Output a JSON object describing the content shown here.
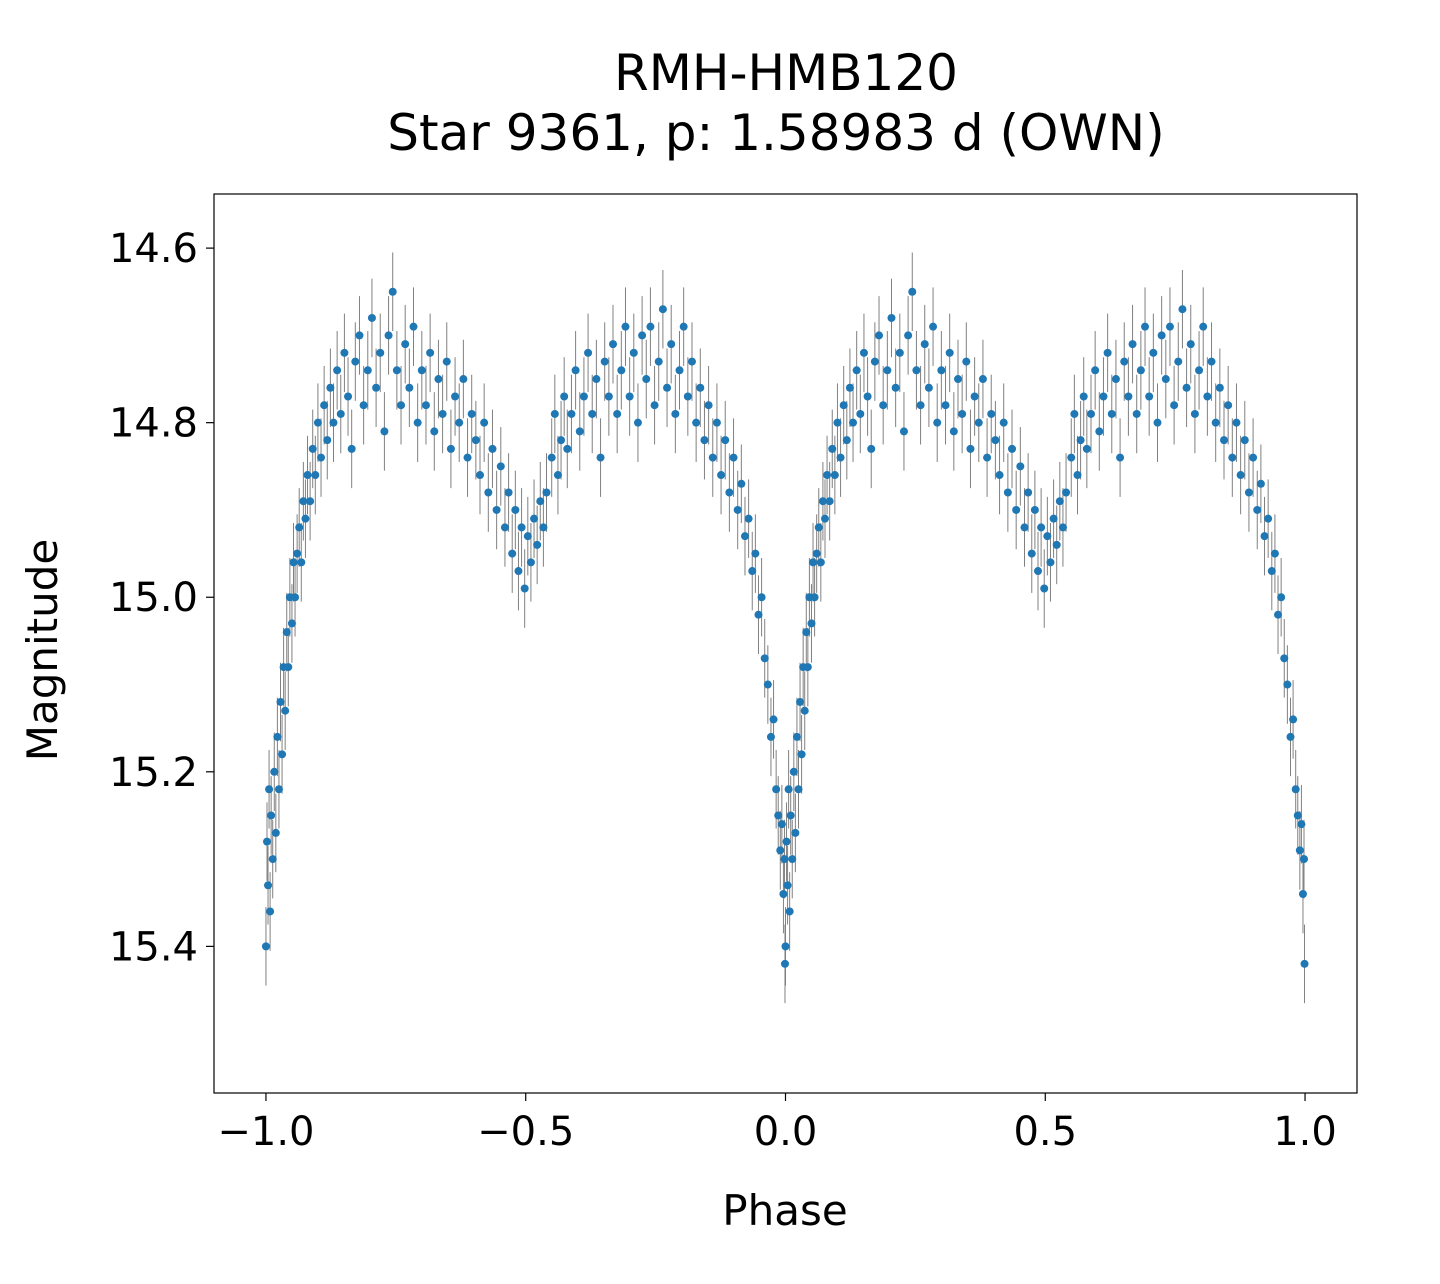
{
  "chart_data": {
    "type": "scatter",
    "title": "RMH-HMB120",
    "subtitle": "Star 9361, p: 1.58983 d (OWN)",
    "xlabel": "Phase",
    "ylabel": "Magnitude",
    "xlim": [
      -1.1,
      1.1
    ],
    "ylim": [
      15.568,
      14.538
    ],
    "y_inverted": true,
    "grid": false,
    "xticks": [
      {
        "value": -1.0,
        "label": "−1.0"
      },
      {
        "value": -0.5,
        "label": "−0.5"
      },
      {
        "value": 0.0,
        "label": "0.0"
      },
      {
        "value": 0.5,
        "label": "0.5"
      },
      {
        "value": 1.0,
        "label": "1.0"
      }
    ],
    "yticks": [
      {
        "value": 14.6,
        "label": "14.6"
      },
      {
        "value": 14.8,
        "label": "14.8"
      },
      {
        "value": 15.0,
        "label": "15.0"
      },
      {
        "value": 15.2,
        "label": "15.2"
      },
      {
        "value": 15.4,
        "label": "15.4"
      }
    ],
    "point_color": "#1f77b4",
    "errorbar_color": "#808080",
    "typical_error": 0.045,
    "phase_repeat_offsets": [
      0,
      -1
    ],
    "points": [
      [
        0.0,
        15.4
      ],
      [
        0.002,
        15.28
      ],
      [
        0.004,
        15.33
      ],
      [
        0.006,
        15.22
      ],
      [
        0.008,
        15.36
      ],
      [
        0.01,
        15.25
      ],
      [
        0.013,
        15.3
      ],
      [
        0.016,
        15.2
      ],
      [
        0.019,
        15.27
      ],
      [
        0.022,
        15.16
      ],
      [
        0.025,
        15.22
      ],
      [
        0.028,
        15.12
      ],
      [
        0.031,
        15.18
      ],
      [
        0.034,
        15.08
      ],
      [
        0.037,
        15.13
      ],
      [
        0.04,
        15.04
      ],
      [
        0.043,
        15.08
      ],
      [
        0.046,
        15.0
      ],
      [
        0.05,
        15.03
      ],
      [
        0.053,
        14.96
      ],
      [
        0.056,
        15.0
      ],
      [
        0.06,
        14.95
      ],
      [
        0.064,
        14.92
      ],
      [
        0.068,
        14.96
      ],
      [
        0.072,
        14.89
      ],
      [
        0.076,
        14.91
      ],
      [
        0.08,
        14.86
      ],
      [
        0.085,
        14.89
      ],
      [
        0.09,
        14.83
      ],
      [
        0.095,
        14.86
      ],
      [
        0.1,
        14.8
      ],
      [
        0.106,
        14.84
      ],
      [
        0.112,
        14.78
      ],
      [
        0.118,
        14.82
      ],
      [
        0.124,
        14.76
      ],
      [
        0.13,
        14.8
      ],
      [
        0.137,
        14.74
      ],
      [
        0.144,
        14.79
      ],
      [
        0.151,
        14.72
      ],
      [
        0.158,
        14.77
      ],
      [
        0.165,
        14.83
      ],
      [
        0.172,
        14.73
      ],
      [
        0.18,
        14.7
      ],
      [
        0.188,
        14.78
      ],
      [
        0.196,
        14.74
      ],
      [
        0.204,
        14.68
      ],
      [
        0.212,
        14.76
      ],
      [
        0.22,
        14.72
      ],
      [
        0.228,
        14.81
      ],
      [
        0.236,
        14.7
      ],
      [
        0.244,
        14.65
      ],
      [
        0.252,
        14.74
      ],
      [
        0.26,
        14.78
      ],
      [
        0.268,
        14.71
      ],
      [
        0.276,
        14.76
      ],
      [
        0.284,
        14.69
      ],
      [
        0.292,
        14.8
      ],
      [
        0.3,
        14.74
      ],
      [
        0.308,
        14.78
      ],
      [
        0.316,
        14.72
      ],
      [
        0.324,
        14.81
      ],
      [
        0.332,
        14.75
      ],
      [
        0.34,
        14.79
      ],
      [
        0.348,
        14.73
      ],
      [
        0.356,
        14.83
      ],
      [
        0.364,
        14.77
      ],
      [
        0.372,
        14.8
      ],
      [
        0.38,
        14.75
      ],
      [
        0.388,
        14.84
      ],
      [
        0.396,
        14.79
      ],
      [
        0.404,
        14.82
      ],
      [
        0.412,
        14.86
      ],
      [
        0.42,
        14.8
      ],
      [
        0.428,
        14.88
      ],
      [
        0.436,
        14.83
      ],
      [
        0.444,
        14.9
      ],
      [
        0.452,
        14.85
      ],
      [
        0.46,
        14.92
      ],
      [
        0.467,
        14.88
      ],
      [
        0.474,
        14.95
      ],
      [
        0.48,
        14.9
      ],
      [
        0.486,
        14.97
      ],
      [
        0.492,
        14.92
      ],
      [
        0.498,
        14.99
      ],
      [
        0.504,
        14.93
      ],
      [
        0.51,
        14.96
      ],
      [
        0.516,
        14.91
      ],
      [
        0.522,
        14.94
      ],
      [
        0.528,
        14.89
      ],
      [
        0.534,
        14.92
      ],
      [
        0.54,
        14.88
      ],
      [
        0.55,
        14.84
      ],
      [
        0.556,
        14.79
      ],
      [
        0.562,
        14.86
      ],
      [
        0.568,
        14.82
      ],
      [
        0.574,
        14.77
      ],
      [
        0.58,
        14.83
      ],
      [
        0.588,
        14.79
      ],
      [
        0.596,
        14.74
      ],
      [
        0.604,
        14.81
      ],
      [
        0.612,
        14.77
      ],
      [
        0.62,
        14.72
      ],
      [
        0.628,
        14.79
      ],
      [
        0.636,
        14.75
      ],
      [
        0.644,
        14.84
      ],
      [
        0.652,
        14.73
      ],
      [
        0.66,
        14.77
      ],
      [
        0.668,
        14.71
      ],
      [
        0.676,
        14.79
      ],
      [
        0.684,
        14.74
      ],
      [
        0.692,
        14.69
      ],
      [
        0.7,
        14.77
      ],
      [
        0.708,
        14.72
      ],
      [
        0.716,
        14.8
      ],
      [
        0.724,
        14.7
      ],
      [
        0.732,
        14.75
      ],
      [
        0.74,
        14.69
      ],
      [
        0.748,
        14.78
      ],
      [
        0.756,
        14.73
      ],
      [
        0.764,
        14.67
      ],
      [
        0.772,
        14.76
      ],
      [
        0.78,
        14.71
      ],
      [
        0.788,
        14.79
      ],
      [
        0.796,
        14.74
      ],
      [
        0.804,
        14.69
      ],
      [
        0.812,
        14.77
      ],
      [
        0.82,
        14.73
      ],
      [
        0.828,
        14.8
      ],
      [
        0.836,
        14.76
      ],
      [
        0.844,
        14.82
      ],
      [
        0.852,
        14.78
      ],
      [
        0.86,
        14.84
      ],
      [
        0.868,
        14.8
      ],
      [
        0.876,
        14.86
      ],
      [
        0.884,
        14.82
      ],
      [
        0.892,
        14.88
      ],
      [
        0.9,
        14.84
      ],
      [
        0.908,
        14.9
      ],
      [
        0.915,
        14.87
      ],
      [
        0.922,
        14.93
      ],
      [
        0.929,
        14.91
      ],
      [
        0.936,
        14.97
      ],
      [
        0.942,
        14.95
      ],
      [
        0.948,
        15.02
      ],
      [
        0.954,
        15.0
      ],
      [
        0.96,
        15.07
      ],
      [
        0.966,
        15.1
      ],
      [
        0.972,
        15.16
      ],
      [
        0.977,
        15.14
      ],
      [
        0.982,
        15.22
      ],
      [
        0.986,
        15.25
      ],
      [
        0.99,
        15.29
      ],
      [
        0.993,
        15.26
      ],
      [
        0.996,
        15.34
      ],
      [
        0.998,
        15.3
      ],
      [
        0.999,
        15.42
      ]
    ]
  }
}
